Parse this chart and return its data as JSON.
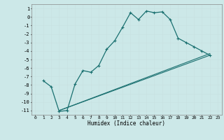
{
  "title": "",
  "xlabel": "Humidex (Indice chaleur)",
  "bg_color": "#cce8e8",
  "grid_color": "#ddeeee",
  "line_color": "#1a7070",
  "xlim": [
    -0.5,
    23.5
  ],
  "ylim": [
    -11.5,
    1.5
  ],
  "yticks": [
    1,
    0,
    -1,
    -2,
    -3,
    -4,
    -5,
    -6,
    -7,
    -8,
    -9,
    -10,
    -11
  ],
  "xticks": [
    0,
    1,
    2,
    3,
    4,
    5,
    6,
    7,
    8,
    9,
    10,
    11,
    12,
    13,
    14,
    15,
    16,
    17,
    18,
    19,
    20,
    21,
    22,
    23
  ],
  "line1_x": [
    1,
    2,
    3,
    4,
    5,
    6,
    7,
    8,
    9,
    10,
    11,
    12,
    13,
    14,
    15,
    16,
    17,
    18,
    19,
    20,
    21,
    22
  ],
  "line1_y": [
    -7.5,
    -8.2,
    -11.1,
    -11.0,
    -7.9,
    -6.3,
    -6.5,
    -5.7,
    -3.8,
    -2.8,
    -1.2,
    0.5,
    -0.3,
    0.7,
    0.5,
    0.6,
    -0.3,
    -2.5,
    -3.0,
    -3.5,
    -4.0,
    -4.5
  ],
  "line2_x": [
    3,
    22
  ],
  "line2_y": [
    -11.0,
    -4.5
  ],
  "line3_x": [
    3,
    22
  ],
  "line3_y": [
    -11.0,
    -4.3
  ]
}
